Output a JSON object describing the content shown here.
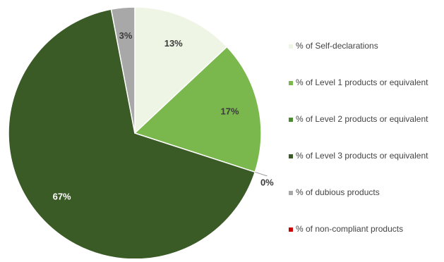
{
  "chart_data": {
    "type": "pie",
    "title": "",
    "legend_position": "right",
    "slices": [
      {
        "label": "% of Self-declarations",
        "value": 13,
        "value_label": "13%",
        "color": "#eef5e4",
        "label_color": "#3b3b3b"
      },
      {
        "label": "% of Level 1 products or equivalent",
        "value": 17,
        "value_label": "17%",
        "color": "#7ab84e",
        "label_color": "#3b3b3b"
      },
      {
        "label": "% of Level 2 products or equivalent",
        "value": 0,
        "value_label": "0%",
        "color": "#4c8a2f",
        "label_color": "#3b3b3b"
      },
      {
        "label": "% of Level 3 products or equivalent",
        "value": 67,
        "value_label": "67%",
        "color": "#3a5a26",
        "label_color": "#ffffff"
      },
      {
        "label": "% of dubious products",
        "value": 3,
        "value_label": "3%",
        "color": "#a8a8a8",
        "label_color": "#3b3b3b"
      },
      {
        "label": "% of non-compliant products",
        "value": 0,
        "value_label": "",
        "color": "#cc0000",
        "label_color": "#3b3b3b"
      }
    ]
  }
}
